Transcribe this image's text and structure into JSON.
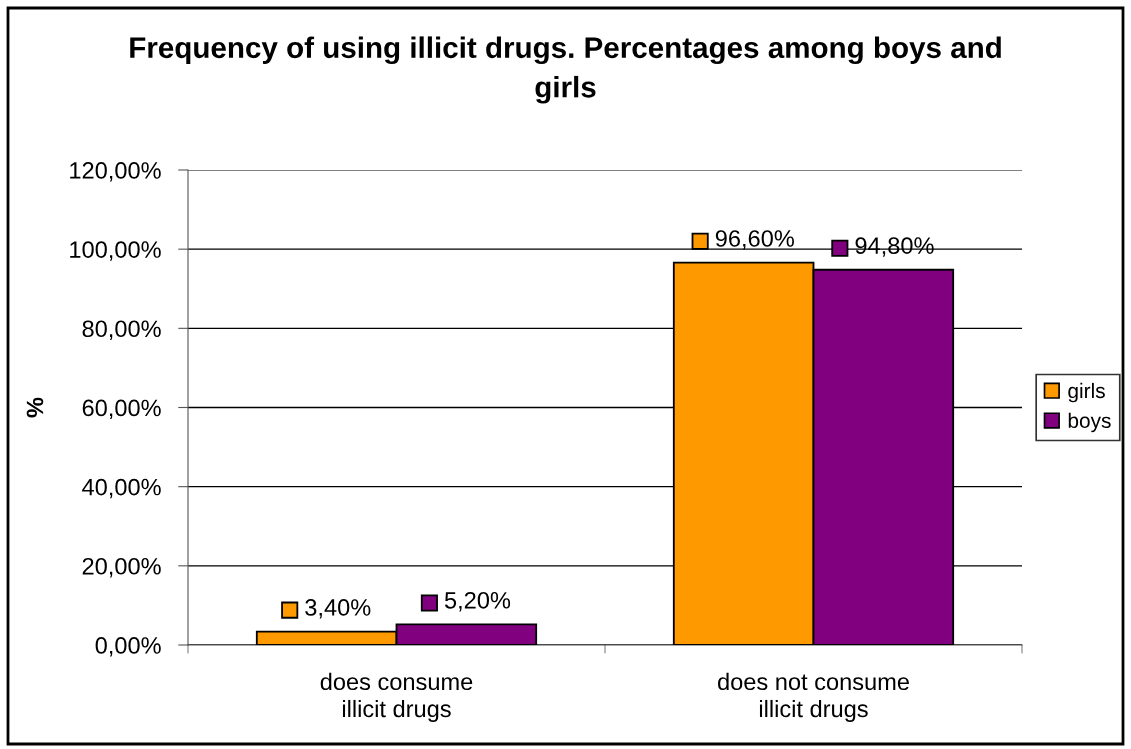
{
  "chart_data": {
    "type": "bar",
    "title": "Frequency of using illicit drugs. Percentages among boys and\ngirls",
    "ylabel": "%",
    "categories": [
      "does consume\nillicit drugs",
      "does not consume\nillicit drugs"
    ],
    "series": [
      {
        "name": "girls",
        "color": "#ff9900",
        "values": [
          3.4,
          96.6
        ],
        "value_labels": [
          "3,40%",
          "96,60%"
        ]
      },
      {
        "name": "boys",
        "color": "#800080",
        "values": [
          5.2,
          94.8
        ],
        "value_labels": [
          "5,20%",
          "94,80%"
        ]
      }
    ],
    "ylim": [
      0,
      120
    ],
    "yticks": [
      {
        "value": 0,
        "label": "0,00%"
      },
      {
        "value": 20,
        "label": "20,00%"
      },
      {
        "value": 40,
        "label": "40,00%"
      },
      {
        "value": 60,
        "label": "60,00%"
      },
      {
        "value": 80,
        "label": "80,00%"
      },
      {
        "value": 100,
        "label": "100,00%"
      },
      {
        "value": 120,
        "label": "120,00%"
      }
    ],
    "grid": "y",
    "legend": "right"
  }
}
